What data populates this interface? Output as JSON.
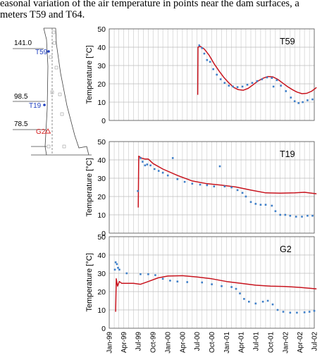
{
  "caption": {
    "line1": "easonal variation of the air temperature in points near the dam surfaces, a",
    "line2": "meters T59 and T64."
  },
  "dam": {
    "elevations": [
      "141.0",
      "98.5",
      "78.5"
    ],
    "gauges": [
      {
        "name": "T59",
        "color": "#1f3fbf"
      },
      {
        "name": "T19",
        "color": "#1f3fbf"
      },
      {
        "name": "G2",
        "color": "#d42020"
      }
    ]
  },
  "chart_data": [
    {
      "type": "line",
      "label": "T59",
      "ylabel": "Temperature [°C]",
      "ylim": [
        0,
        50
      ],
      "yticks": [
        0,
        10,
        20,
        30,
        40,
        50
      ],
      "grid": true,
      "series": [
        {
          "color": "#c8141e",
          "style": "line",
          "points": [
            [
              "2000-07-05",
              14
            ],
            [
              "2000-07-07",
              40
            ],
            [
              "2000-07-20",
              40.5
            ],
            [
              "2000-08-15",
              39
            ],
            [
              "2000-09-15",
              35.5
            ],
            [
              "2000-10-15",
              31
            ],
            [
              "2000-11-15",
              27
            ],
            [
              "2000-12-15",
              23.5
            ],
            [
              "2001-01-15",
              20.5
            ],
            [
              "2001-02-15",
              18
            ],
            [
              "2001-03-15",
              16.8
            ],
            [
              "2001-04-15",
              16.5
            ],
            [
              "2001-05-15",
              17.5
            ],
            [
              "2001-06-15",
              19.5
            ],
            [
              "2001-07-15",
              21.5
            ],
            [
              "2001-08-15",
              23
            ],
            [
              "2001-09-15",
              24
            ],
            [
              "2001-10-15",
              23.8
            ],
            [
              "2001-11-15",
              22.5
            ],
            [
              "2001-12-15",
              20.5
            ],
            [
              "2002-01-15",
              18.5
            ],
            [
              "2002-02-15",
              16.8
            ],
            [
              "2002-03-15",
              15.5
            ],
            [
              "2002-04-15",
              14.6
            ],
            [
              "2002-05-15",
              14.8
            ],
            [
              "2002-06-15",
              16
            ],
            [
              "2002-07-15",
              18
            ]
          ]
        },
        {
          "color": "#3f7fc8",
          "style": "points",
          "points": [
            [
              "2000-07-15",
              41
            ],
            [
              "2000-08-01",
              39.5
            ],
            [
              "2000-08-15",
              36.5
            ],
            [
              "2000-09-01",
              33
            ],
            [
              "2000-09-20",
              32
            ],
            [
              "2000-10-10",
              28
            ],
            [
              "2000-11-01",
              25
            ],
            [
              "2000-11-25",
              22.5
            ],
            [
              "2000-12-20",
              20.5
            ],
            [
              "2001-01-15",
              19
            ],
            [
              "2001-02-10",
              18.5
            ],
            [
              "2001-03-10",
              18.2
            ],
            [
              "2001-04-10",
              18.5
            ],
            [
              "2001-05-10",
              19.5
            ],
            [
              "2001-06-10",
              20.5
            ],
            [
              "2001-07-10",
              21.5
            ],
            [
              "2001-08-10",
              22.5
            ],
            [
              "2001-09-10",
              23.5
            ],
            [
              "2001-10-10",
              23.2
            ],
            [
              "2001-10-20",
              18.5
            ],
            [
              "2001-11-10",
              22
            ],
            [
              "2001-12-05",
              19
            ],
            [
              "2002-01-05",
              16
            ],
            [
              "2002-02-05",
              12.5
            ],
            [
              "2002-03-01",
              10.5
            ],
            [
              "2002-03-25",
              9.5
            ],
            [
              "2002-04-20",
              10
            ],
            [
              "2002-05-20",
              11
            ],
            [
              "2002-06-20",
              11.5
            ]
          ]
        }
      ]
    },
    {
      "type": "line",
      "label": "T19",
      "ylabel": "Temperature [°C]",
      "ylim": [
        0,
        50
      ],
      "yticks": [
        0,
        10,
        20,
        30,
        40,
        50
      ],
      "grid": true,
      "series": [
        {
          "color": "#c8141e",
          "style": "line",
          "points": [
            [
              "1999-07-01",
              14
            ],
            [
              "1999-07-04",
              42
            ],
            [
              "1999-07-20",
              41
            ],
            [
              "1999-08-10",
              40.5
            ],
            [
              "1999-09-01",
              40.5
            ],
            [
              "1999-10-01",
              38
            ],
            [
              "1999-12-01",
              35
            ],
            [
              "2000-03-01",
              31.5
            ],
            [
              "2000-06-01",
              28.5
            ],
            [
              "2000-09-01",
              27
            ],
            [
              "2000-12-01",
              26.2
            ],
            [
              "2001-03-01",
              25.2
            ],
            [
              "2001-06-01",
              23.5
            ],
            [
              "2001-09-01",
              22
            ],
            [
              "2001-12-01",
              21.8
            ],
            [
              "2002-03-01",
              22
            ],
            [
              "2002-05-01",
              22.3
            ],
            [
              "2002-07-15",
              21.5
            ]
          ]
        },
        {
          "color": "#3f7fc8",
          "style": "points",
          "points": [
            [
              "1999-06-28",
              23
            ],
            [
              "1999-07-15",
              41
            ],
            [
              "1999-07-28",
              39
            ],
            [
              "1999-08-12",
              37
            ],
            [
              "1999-08-25",
              37.5
            ],
            [
              "1999-09-15",
              37
            ],
            [
              "1999-10-10",
              35
            ],
            [
              "1999-11-05",
              34
            ],
            [
              "1999-12-01",
              33
            ],
            [
              "2000-01-01",
              31.5
            ],
            [
              "2000-02-01",
              41
            ],
            [
              "2000-03-01",
              29.5
            ],
            [
              "2000-04-15",
              28
            ],
            [
              "2000-06-01",
              27
            ],
            [
              "2000-07-20",
              26.5
            ],
            [
              "2000-09-01",
              26.2
            ],
            [
              "2000-10-15",
              25.5
            ],
            [
              "2000-11-20",
              36.5
            ],
            [
              "2000-12-20",
              25.5
            ],
            [
              "2001-02-01",
              25
            ],
            [
              "2001-03-10",
              23.5
            ],
            [
              "2001-04-10",
              22
            ],
            [
              "2001-05-01",
              20
            ],
            [
              "2001-06-01",
              17
            ],
            [
              "2001-07-01",
              16
            ],
            [
              "2001-08-01",
              15.5
            ],
            [
              "2001-09-01",
              15.5
            ],
            [
              "2001-10-10",
              15
            ],
            [
              "2001-11-01",
              12
            ],
            [
              "2001-12-01",
              10
            ],
            [
              "2002-01-01",
              10
            ],
            [
              "2002-02-01",
              9.5
            ],
            [
              "2002-03-10",
              9
            ],
            [
              "2002-04-15",
              9
            ],
            [
              "2002-05-20",
              9.5
            ],
            [
              "2002-06-20",
              9.5
            ]
          ]
        }
      ]
    },
    {
      "type": "line",
      "label": "G2",
      "ylabel": "Temperature [°C]",
      "ylim": [
        0,
        50
      ],
      "yticks": [
        0,
        10,
        20,
        30,
        40,
        50
      ],
      "grid": true,
      "xticks": [
        "Jan-99",
        "Apr-99",
        "Jul-99",
        "Oct-99",
        "Jan-00",
        "Apr-00",
        "Jul-00",
        "Oct-00",
        "Jan-01",
        "Apr-01",
        "Jul-01",
        "Oct-01",
        "Jan-02",
        "Apr-02",
        "Jul-02"
      ],
      "series": [
        {
          "color": "#c8141e",
          "style": "line",
          "points": [
            [
              "1999-02-10",
              9
            ],
            [
              "1999-02-14",
              27
            ],
            [
              "1999-02-22",
              23
            ],
            [
              "1999-03-05",
              25.5
            ],
            [
              "1999-03-20",
              24.5
            ],
            [
              "1999-04-15",
              24.5
            ],
            [
              "1999-06-01",
              24.5
            ],
            [
              "1999-07-15",
              24
            ],
            [
              "1999-09-01",
              25.5
            ],
            [
              "1999-11-01",
              27.5
            ],
            [
              "2000-01-01",
              28.5
            ],
            [
              "2000-04-01",
              28.7
            ],
            [
              "2000-07-01",
              28
            ],
            [
              "2000-10-01",
              27
            ],
            [
              "2001-01-01",
              25.5
            ],
            [
              "2001-04-01",
              24.5
            ],
            [
              "2001-07-01",
              23.5
            ],
            [
              "2001-10-01",
              23
            ],
            [
              "2002-01-01",
              22.8
            ],
            [
              "2002-04-01",
              22.3
            ],
            [
              "2002-07-15",
              21.5
            ]
          ]
        },
        {
          "color": "#3f7fc8",
          "style": "points",
          "points": [
            [
              "1999-02-05",
              32
            ],
            [
              "1999-02-10",
              36
            ],
            [
              "1999-02-18",
              35
            ],
            [
              "1999-02-25",
              33
            ],
            [
              "1999-03-05",
              32
            ],
            [
              "1999-04-20",
              30
            ],
            [
              "1999-07-15",
              29.5
            ],
            [
              "1999-09-01",
              29.5
            ],
            [
              "1999-10-15",
              29
            ],
            [
              "1999-12-01",
              27
            ],
            [
              "2000-01-15",
              26
            ],
            [
              "2000-03-01",
              25.5
            ],
            [
              "2000-05-01",
              25.2
            ],
            [
              "2000-08-01",
              25
            ],
            [
              "2000-10-01",
              24
            ],
            [
              "2000-12-01",
              23
            ],
            [
              "2001-02-01",
              22.5
            ],
            [
              "2001-03-01",
              21.5
            ],
            [
              "2001-03-25",
              19
            ],
            [
              "2001-04-20",
              16
            ],
            [
              "2001-05-20",
              14.5
            ],
            [
              "2001-07-01",
              13.5
            ],
            [
              "2001-08-15",
              14.5
            ],
            [
              "2001-09-15",
              15
            ],
            [
              "2001-10-15",
              13
            ],
            [
              "2001-11-15",
              10
            ],
            [
              "2001-12-20",
              9
            ],
            [
              "2002-02-01",
              8.5
            ],
            [
              "2002-03-15",
              8.5
            ],
            [
              "2002-05-01",
              8.7
            ],
            [
              "2002-06-01",
              9
            ],
            [
              "2002-07-01",
              9.5
            ]
          ]
        }
      ]
    }
  ]
}
